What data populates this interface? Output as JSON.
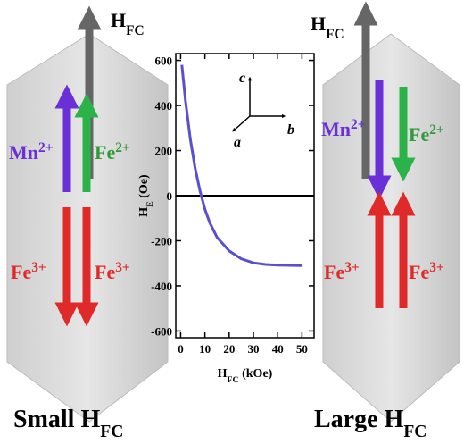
{
  "chart_data": {
    "type": "line",
    "x": [
      0.5,
      2,
      4,
      6,
      8,
      10,
      12,
      15,
      20,
      25,
      30,
      35,
      40,
      45,
      50
    ],
    "series": [
      {
        "color": "#5a4fd0",
        "values": [
          580,
          420,
          250,
          120,
          20,
          -60,
          -120,
          -185,
          -245,
          -280,
          -298,
          -305,
          -308,
          -309,
          -310
        ]
      }
    ],
    "xlim": [
      -2,
      55
    ],
    "xticks": [
      0,
      10,
      20,
      30,
      40,
      50
    ],
    "ylim": [
      -630,
      630
    ],
    "yticks": [
      600,
      400,
      200,
      0,
      -200,
      -400,
      -600
    ],
    "zero_line": true,
    "xlabel": {
      "main": "H",
      "sub": "FC",
      "rest": " (kOe)"
    },
    "ylabel": {
      "main": "H",
      "sub": "E",
      "rest": " (Oe)"
    },
    "crystal_axes": [
      "c",
      "a",
      "b"
    ]
  },
  "diagram": {
    "field": {
      "main": "H",
      "sub": "FC"
    },
    "left": {
      "caption": {
        "main": "Small H",
        "sub": "FC"
      },
      "labels": [
        {
          "text": "Mn",
          "sup": "2+"
        },
        {
          "text": "Fe",
          "sup": "2+"
        },
        {
          "text": "Fe",
          "sup": "3+"
        },
        {
          "text": "Fe",
          "sup": "3+"
        }
      ]
    },
    "right": {
      "caption": {
        "main": "Large H",
        "sub": "FC"
      },
      "labels": [
        {
          "text": "Mn",
          "sup": "2+"
        },
        {
          "text": "Fe",
          "sup": "2+"
        },
        {
          "text": "Fe",
          "sup": "3+"
        },
        {
          "text": "Fe",
          "sup": "3+"
        }
      ]
    }
  }
}
